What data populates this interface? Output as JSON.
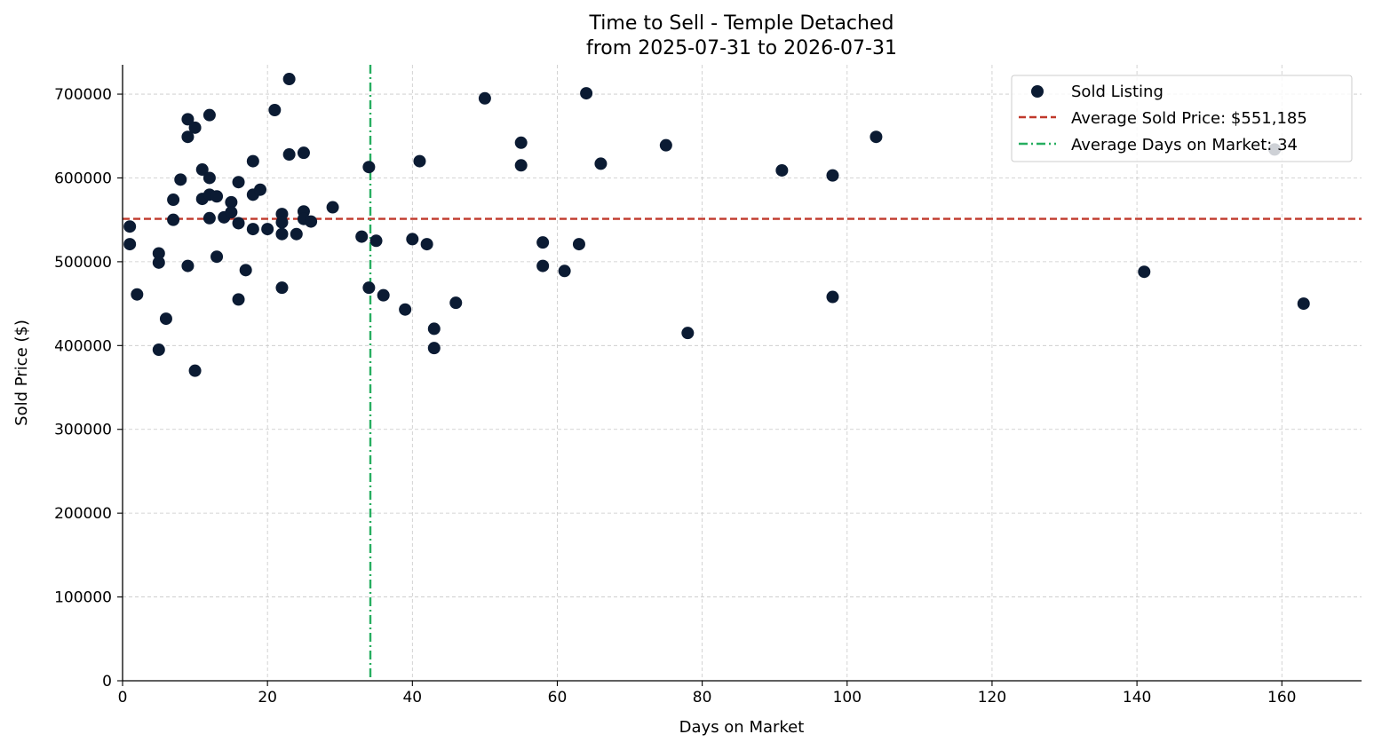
{
  "chart_data": {
    "type": "scatter",
    "title": "Time to Sell - Temple Detached",
    "subtitle": "from 2025-07-31 to 2026-07-31",
    "xlabel": "Days on Market",
    "ylabel": "Sold Price ($)",
    "xlim": [
      0,
      171
    ],
    "ylim": [
      0,
      735000
    ],
    "x_ticks": [
      "0",
      "20",
      "40",
      "60",
      "80",
      "100",
      "120",
      "140",
      "160"
    ],
    "y_ticks": [
      "0",
      "100000",
      "200000",
      "300000",
      "400000",
      "500000",
      "600000",
      "700000"
    ],
    "grid": true,
    "legend_position": "top-right",
    "series": [
      {
        "name": "Sold Listing",
        "color": "#0b1b33",
        "points": [
          [
            1,
            542000
          ],
          [
            1,
            521000
          ],
          [
            2,
            461000
          ],
          [
            5,
            510000
          ],
          [
            5,
            499000
          ],
          [
            5,
            395000
          ],
          [
            6,
            432000
          ],
          [
            7,
            574000
          ],
          [
            7,
            550000
          ],
          [
            8,
            598000
          ],
          [
            9,
            670000
          ],
          [
            9,
            649000
          ],
          [
            9,
            495000
          ],
          [
            10,
            660000
          ],
          [
            10,
            370000
          ],
          [
            11,
            610000
          ],
          [
            11,
            575000
          ],
          [
            12,
            675000
          ],
          [
            12,
            600000
          ],
          [
            12,
            580000
          ],
          [
            12,
            552000
          ],
          [
            13,
            578000
          ],
          [
            13,
            506000
          ],
          [
            14,
            553000
          ],
          [
            15,
            571000
          ],
          [
            15,
            559000
          ],
          [
            16,
            595000
          ],
          [
            16,
            546000
          ],
          [
            16,
            455000
          ],
          [
            17,
            490000
          ],
          [
            18,
            620000
          ],
          [
            18,
            580000
          ],
          [
            18,
            539000
          ],
          [
            19,
            586000
          ],
          [
            20,
            539000
          ],
          [
            21,
            681000
          ],
          [
            22,
            557000
          ],
          [
            22,
            547000
          ],
          [
            22,
            533000
          ],
          [
            22,
            469000
          ],
          [
            23,
            718000
          ],
          [
            23,
            628000
          ],
          [
            24,
            533000
          ],
          [
            25,
            630000
          ],
          [
            25,
            560000
          ],
          [
            25,
            551000
          ],
          [
            26,
            548000
          ],
          [
            29,
            565000
          ],
          [
            33,
            530000
          ],
          [
            34,
            613000
          ],
          [
            34,
            469000
          ],
          [
            35,
            525000
          ],
          [
            36,
            460000
          ],
          [
            39,
            443000
          ],
          [
            40,
            527000
          ],
          [
            41,
            620000
          ],
          [
            42,
            521000
          ],
          [
            43,
            420000
          ],
          [
            43,
            397000
          ],
          [
            46,
            451000
          ],
          [
            50,
            695000
          ],
          [
            55,
            642000
          ],
          [
            55,
            615000
          ],
          [
            58,
            523000
          ],
          [
            58,
            495000
          ],
          [
            61,
            489000
          ],
          [
            63,
            521000
          ],
          [
            64,
            701000
          ],
          [
            66,
            617000
          ],
          [
            75,
            639000
          ],
          [
            78,
            415000
          ],
          [
            91,
            609000
          ],
          [
            98,
            603000
          ],
          [
            98,
            458000
          ],
          [
            104,
            649000
          ],
          [
            141,
            488000
          ],
          [
            159,
            634000
          ],
          [
            163,
            450000
          ]
        ]
      },
      {
        "name": "Average Sold Price: $551,185",
        "type": "hline",
        "value": 551185,
        "color": "#c0392b",
        "style": "dashed"
      },
      {
        "name": "Average Days on Market: 34",
        "type": "vline",
        "value": 34.2,
        "color": "#27ae60",
        "style": "dashdot"
      }
    ]
  }
}
